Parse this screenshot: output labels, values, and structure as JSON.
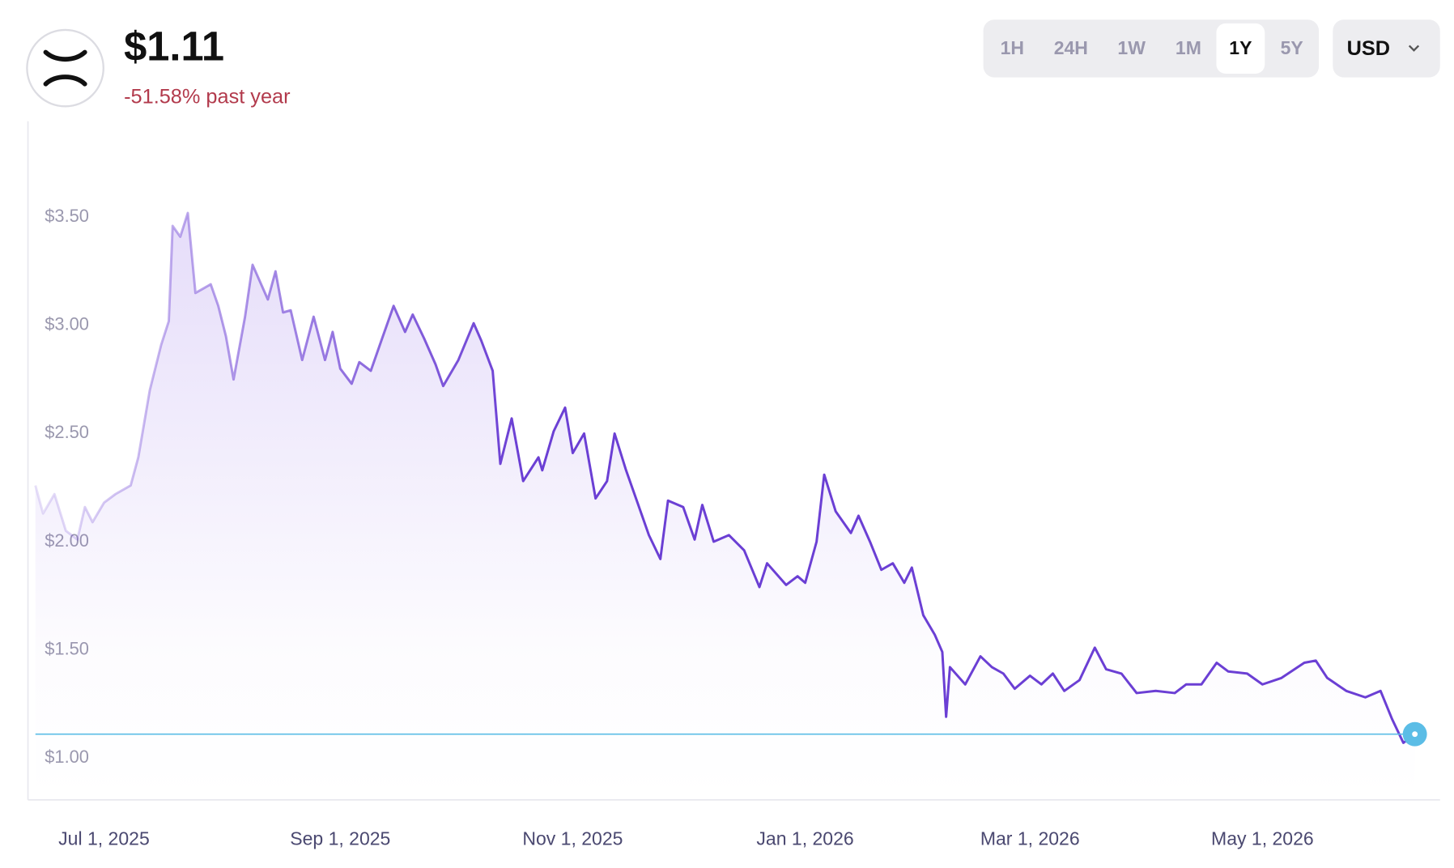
{
  "header": {
    "price": "$1.11",
    "change": "-51.58% past year"
  },
  "range_buttons": [
    "1H",
    "24H",
    "1W",
    "1M",
    "1Y",
    "5Y"
  ],
  "selected_range": "1Y",
  "currency": "USD",
  "chart_data": {
    "type": "line",
    "x": [
      "2025-06-13",
      "2025-06-15",
      "2025-06-18",
      "2025-06-21",
      "2025-06-24",
      "2025-06-26",
      "2025-06-28",
      "2025-07-01",
      "2025-07-04",
      "2025-07-08",
      "2025-07-10",
      "2025-07-13",
      "2025-07-16",
      "2025-07-18",
      "2025-07-19",
      "2025-07-21",
      "2025-07-23",
      "2025-07-25",
      "2025-07-29",
      "2025-07-31",
      "2025-08-02",
      "2025-08-04",
      "2025-08-07",
      "2025-08-09",
      "2025-08-13",
      "2025-08-15",
      "2025-08-17",
      "2025-08-19",
      "2025-08-22",
      "2025-08-25",
      "2025-08-28",
      "2025-08-30",
      "2025-09-01",
      "2025-09-04",
      "2025-09-06",
      "2025-09-09",
      "2025-09-12",
      "2025-09-15",
      "2025-09-18",
      "2025-09-20",
      "2025-09-23",
      "2025-09-26",
      "2025-09-28",
      "2025-10-02",
      "2025-10-06",
      "2025-10-08",
      "2025-10-11",
      "2025-10-13",
      "2025-10-16",
      "2025-10-19",
      "2025-10-23",
      "2025-10-24",
      "2025-10-27",
      "2025-10-30",
      "2025-11-01",
      "2025-11-04",
      "2025-11-07",
      "2025-11-10",
      "2025-11-12",
      "2025-11-15",
      "2025-11-18",
      "2025-11-21",
      "2025-11-24",
      "2025-11-26",
      "2025-11-30",
      "2025-12-03",
      "2025-12-05",
      "2025-12-08",
      "2025-12-12",
      "2025-12-16",
      "2025-12-20",
      "2025-12-22",
      "2025-12-27",
      "2025-12-30",
      "2026-01-01",
      "2026-01-04",
      "2026-01-06",
      "2026-01-09",
      "2026-01-13",
      "2026-01-15",
      "2026-01-18",
      "2026-01-21",
      "2026-01-24",
      "2026-01-27",
      "2026-01-29",
      "2026-02-01",
      "2026-02-04",
      "2026-02-06",
      "2026-02-07",
      "2026-02-08",
      "2026-02-12",
      "2026-02-16",
      "2026-02-19",
      "2026-02-22",
      "2026-02-25",
      "2026-03-01",
      "2026-03-04",
      "2026-03-07",
      "2026-03-10",
      "2026-03-14",
      "2026-03-18",
      "2026-03-21",
      "2026-03-25",
      "2026-03-29",
      "2026-04-03",
      "2026-04-08",
      "2026-04-11",
      "2026-04-15",
      "2026-04-19",
      "2026-04-22",
      "2026-04-27",
      "2026-05-01",
      "2026-05-06",
      "2026-05-12",
      "2026-05-15",
      "2026-05-18",
      "2026-05-23",
      "2026-05-28",
      "2026-06-01",
      "2026-06-04",
      "2026-06-07",
      "2026-06-10"
    ],
    "series": [
      {
        "name": "XRP",
        "color": "#6b3fd4",
        "values": [
          2.26,
          2.13,
          2.22,
          2.05,
          2.01,
          2.16,
          2.09,
          2.18,
          2.22,
          2.26,
          2.39,
          2.7,
          2.91,
          3.02,
          3.46,
          3.41,
          3.52,
          3.15,
          3.19,
          3.09,
          2.95,
          2.75,
          3.04,
          3.28,
          3.12,
          3.25,
          3.06,
          3.07,
          2.84,
          3.04,
          2.84,
          2.97,
          2.8,
          2.73,
          2.83,
          2.79,
          2.94,
          3.09,
          2.97,
          3.05,
          2.94,
          2.82,
          2.72,
          2.84,
          3.01,
          2.93,
          2.79,
          2.36,
          2.57,
          2.28,
          2.39,
          2.33,
          2.51,
          2.62,
          2.41,
          2.5,
          2.2,
          2.28,
          2.5,
          2.33,
          2.18,
          2.03,
          1.92,
          2.19,
          2.16,
          2.01,
          2.17,
          2.0,
          2.03,
          1.96,
          1.79,
          1.9,
          1.8,
          1.84,
          1.81,
          2.0,
          2.31,
          2.14,
          2.04,
          2.12,
          2.0,
          1.87,
          1.9,
          1.81,
          1.88,
          1.66,
          1.57,
          1.49,
          1.19,
          1.42,
          1.34,
          1.47,
          1.42,
          1.39,
          1.32,
          1.38,
          1.34,
          1.39,
          1.31,
          1.36,
          1.51,
          1.41,
          1.39,
          1.3,
          1.31,
          1.3,
          1.34,
          1.34,
          1.44,
          1.4,
          1.39,
          1.34,
          1.37,
          1.44,
          1.45,
          1.37,
          1.31,
          1.28,
          1.31,
          1.18,
          1.07,
          1.11
        ]
      }
    ],
    "xlim": [
      "2025-06-13",
      "2026-06-10"
    ],
    "ylim": [
      0.8,
      3.95
    ],
    "yticks": [
      {
        "value": 1,
        "label": "$1.00"
      },
      {
        "value": 1.5,
        "label": "$1.50"
      },
      {
        "value": 2,
        "label": "$2.00"
      },
      {
        "value": 2.5,
        "label": "$2.50"
      },
      {
        "value": 3,
        "label": "$3.00"
      },
      {
        "value": 3.5,
        "label": "$3.50"
      }
    ],
    "xticks": [
      {
        "value": "2025-07-01",
        "label": "Jul 1, 2025"
      },
      {
        "value": "2025-09-01",
        "label": "Sep 1, 2025"
      },
      {
        "value": "2025-11-01",
        "label": "Nov 1, 2025"
      },
      {
        "value": "2026-01-01",
        "label": "Jan 1, 2026"
      },
      {
        "value": "2026-03-01",
        "label": "Mar 1, 2026"
      },
      {
        "value": "2026-05-01",
        "label": "May 1, 2026"
      }
    ],
    "reference_line_color": "#5bbde6"
  }
}
